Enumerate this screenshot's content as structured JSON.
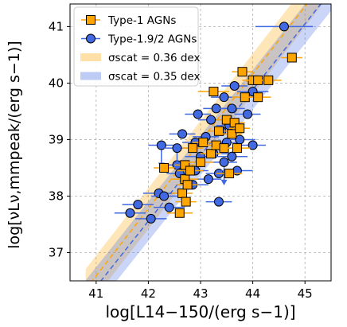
{
  "chart_data": {
    "type": "scatter",
    "xlabel": "log[L14−150/(erg s−1)]",
    "ylabel": "log[νLν,mmpeak/(erg s−1)]",
    "xlim": [
      40.5,
      45.5
    ],
    "ylim": [
      36.5,
      41.4
    ],
    "x_ticks": [
      "41",
      "42",
      "43",
      "44",
      "45"
    ],
    "y_ticks": [
      "37",
      "38",
      "39",
      "40",
      "41"
    ],
    "grid": true,
    "legend_position": "top-left",
    "legend": [
      {
        "label": "Type-1 AGNs",
        "kind": "marker",
        "color": "#ffa500"
      },
      {
        "label": "Type-1.9/2 AGNs",
        "kind": "marker",
        "color": "#4169e1"
      },
      {
        "label": "σscat = 0.36 dex",
        "kind": "band",
        "color": "#ffa500"
      },
      {
        "label": "σscat = 0.35 dex",
        "kind": "band",
        "color": "#4169e1"
      }
    ],
    "fits": [
      {
        "name": "Type-1 AGNs",
        "color": "#ffa500",
        "x": [
          40.8,
          45.5
        ],
        "y": [
          36.35,
          41.95
        ],
        "scatter": 0.36
      },
      {
        "name": "Type-1.9/2 AGNs",
        "color": "#4169e1",
        "x": [
          40.8,
          45.5
        ],
        "y": [
          36.16,
          41.63
        ],
        "scatter": 0.35
      }
    ],
    "series": [
      {
        "name": "Type-1 AGNs",
        "color": "#ffa500",
        "marker": "square",
        "points": [
          {
            "x": 42.3,
            "y": 38.5,
            "xerr": 0.2
          },
          {
            "x": 42.6,
            "y": 37.7,
            "xerr": 0.25
          },
          {
            "x": 42.65,
            "y": 38.05,
            "xerr": 0.2
          },
          {
            "x": 42.7,
            "y": 38.3,
            "xerr": 0.25
          },
          {
            "x": 42.72,
            "y": 37.9,
            "xerr": 0.2
          },
          {
            "x": 42.75,
            "y": 38.2,
            "xerr": 0.2
          },
          {
            "x": 42.7,
            "y": 38.55,
            "xerr": 0.2
          },
          {
            "x": 42.8,
            "y": 38.45,
            "xerr": 0.25
          },
          {
            "x": 42.85,
            "y": 38.85,
            "xerr": 0.2
          },
          {
            "x": 43.0,
            "y": 38.6,
            "xerr": 0.25
          },
          {
            "x": 43.05,
            "y": 38.95,
            "xerr": 0.2
          },
          {
            "x": 43.2,
            "y": 38.75,
            "xerr": 0.2
          },
          {
            "x": 43.25,
            "y": 39.85,
            "xerr": 0.3
          },
          {
            "x": 43.3,
            "y": 38.9,
            "xerr": 0.2
          },
          {
            "x": 43.35,
            "y": 39.15,
            "xerr": 0.2
          },
          {
            "x": 43.45,
            "y": 38.85,
            "xerr": 0.25
          },
          {
            "x": 43.5,
            "y": 39.35,
            "xerr": 0.2
          },
          {
            "x": 43.55,
            "y": 38.4,
            "xerr": 0.25
          },
          {
            "x": 43.6,
            "y": 39.1,
            "xerr": 0.2
          },
          {
            "x": 43.65,
            "y": 39.3,
            "xerr": 0.2
          },
          {
            "x": 43.7,
            "y": 38.85,
            "xerr": 0.25
          },
          {
            "x": 43.75,
            "y": 39.2,
            "xerr": 0.2
          },
          {
            "x": 43.8,
            "y": 40.2,
            "xerr": 0.2
          },
          {
            "x": 43.85,
            "y": 39.75,
            "xerr": 0.25
          },
          {
            "x": 44.0,
            "y": 40.05,
            "xerr": 0.2
          },
          {
            "x": 44.1,
            "y": 40.05,
            "xerr": 0.2
          },
          {
            "x": 44.1,
            "y": 39.75,
            "xerr": 0.25
          },
          {
            "x": 44.3,
            "y": 40.05,
            "xerr": 0.25
          },
          {
            "x": 44.75,
            "y": 40.45,
            "xerr": 0.2
          }
        ]
      },
      {
        "name": "Type-1.9/2 AGNs",
        "color": "#4169e1",
        "marker": "circle",
        "points": [
          {
            "x": 41.65,
            "y": 37.7,
            "xerr": 0.3
          },
          {
            "x": 41.8,
            "y": 37.85,
            "xerr": 0.3
          },
          {
            "x": 42.05,
            "y": 37.6,
            "xerr": 0.3
          },
          {
            "x": 42.2,
            "y": 38.05,
            "xerr": 0.3
          },
          {
            "x": 42.25,
            "y": 38.9,
            "xerr": 0.25,
            "upper": true
          },
          {
            "x": 42.3,
            "y": 38.0,
            "xerr": 0.25
          },
          {
            "x": 42.4,
            "y": 37.8,
            "xerr": 0.3
          },
          {
            "x": 42.55,
            "y": 38.55,
            "xerr": 0.25
          },
          {
            "x": 42.55,
            "y": 38.85,
            "xerr": 0.25,
            "upper": true
          },
          {
            "x": 42.6,
            "y": 38.4,
            "xerr": 0.25
          },
          {
            "x": 42.65,
            "y": 39.1,
            "xerr": 0.25
          },
          {
            "x": 42.85,
            "y": 38.2,
            "xerr": 0.3
          },
          {
            "x": 42.9,
            "y": 38.45,
            "xerr": 0.25
          },
          {
            "x": 42.9,
            "y": 38.95,
            "xerr": 0.25
          },
          {
            "x": 42.95,
            "y": 39.45,
            "xerr": 0.25
          },
          {
            "x": 43.0,
            "y": 38.7,
            "xerr": 0.3
          },
          {
            "x": 43.1,
            "y": 39.05,
            "xerr": 0.25
          },
          {
            "x": 43.15,
            "y": 38.3,
            "xerr": 0.25
          },
          {
            "x": 43.2,
            "y": 39.35,
            "xerr": 0.25
          },
          {
            "x": 43.25,
            "y": 38.75,
            "xerr": 0.3
          },
          {
            "x": 43.3,
            "y": 39.55,
            "xerr": 0.25
          },
          {
            "x": 43.35,
            "y": 37.9,
            "xerr": 0.25
          },
          {
            "x": 43.35,
            "y": 38.4,
            "xerr": 0.25
          },
          {
            "x": 43.4,
            "y": 39.15,
            "xerr": 0.25
          },
          {
            "x": 43.45,
            "y": 39.75,
            "xerr": 0.25
          },
          {
            "x": 43.45,
            "y": 38.6,
            "xerr": 0.25,
            "upper": true
          },
          {
            "x": 43.5,
            "y": 38.95,
            "xerr": 0.3
          },
          {
            "x": 43.55,
            "y": 39.25,
            "xerr": 0.25
          },
          {
            "x": 43.6,
            "y": 38.7,
            "xerr": 0.3
          },
          {
            "x": 43.6,
            "y": 39.55,
            "xerr": 0.25
          },
          {
            "x": 43.65,
            "y": 39.95,
            "xerr": 0.25
          },
          {
            "x": 43.7,
            "y": 38.45,
            "xerr": 0.3
          },
          {
            "x": 43.75,
            "y": 39.0,
            "xerr": 0.3
          },
          {
            "x": 43.9,
            "y": 39.45,
            "xerr": 0.25
          },
          {
            "x": 44.0,
            "y": 38.9,
            "xerr": 0.25
          },
          {
            "x": 44.0,
            "y": 39.85,
            "xerr": 0.3
          },
          {
            "x": 44.6,
            "y": 41.0,
            "xerr": 0.55
          }
        ]
      }
    ]
  }
}
